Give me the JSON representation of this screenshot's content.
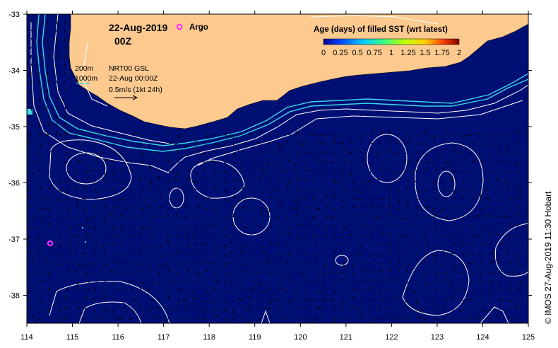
{
  "map": {
    "date_label": "22-Aug-2019",
    "time_label": "00Z",
    "argo_label": "Argo",
    "lon_ticks": [
      "114",
      "115",
      "116",
      "117",
      "118",
      "119",
      "120",
      "121",
      "122",
      "123",
      "124",
      "125"
    ],
    "lat_ticks": [
      "-33",
      "-34",
      "-35",
      "-36",
      "-37",
      "-38"
    ],
    "depth_200": "200m",
    "depth_1000": "1000m",
    "product": "NRT00 GSL",
    "product_time": "22-Aug 00:00Z",
    "vector_scale": "0.5m/s (1kt 24h)",
    "credit": "© IMOS 27-Aug-2019 11:30 Hobart"
  },
  "legend": {
    "title": "Age (days) of filled SST (wrt latest)",
    "labels": [
      "0",
      "0.25",
      "0.5",
      "0.75",
      "1",
      "1.25",
      "1.5",
      "1.75",
      "2"
    ]
  },
  "colors": {
    "ocean": "#000f73",
    "land": "#fcc98f",
    "contour": "#ffffff",
    "bathy": "#3ad6e8",
    "argo": "#ff33ff",
    "vector": "#000000"
  }
}
